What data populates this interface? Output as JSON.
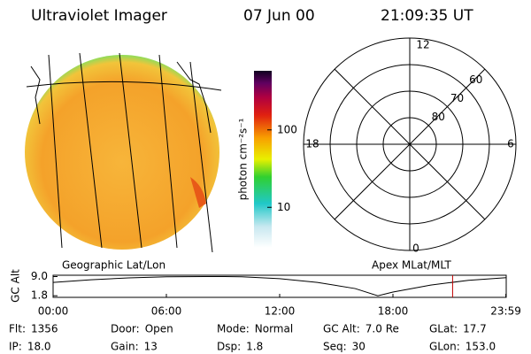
{
  "header": {
    "instrument": "Ultraviolet Imager",
    "date": "07 Jun 00",
    "time": "21:09:35 UT"
  },
  "image": {
    "caption": "Geographic Lat/Lon"
  },
  "colorbar": {
    "label": "photon cm⁻²s⁻¹",
    "log": true,
    "range": [
      3,
      580
    ],
    "ticks": [
      100,
      10
    ]
  },
  "polar": {
    "caption": "Apex MLat/MLT",
    "mlt_labels": [
      "12",
      "18",
      "6",
      "0"
    ],
    "lat_limit": 50,
    "lat_rings": [
      80,
      70,
      60
    ]
  },
  "altitude": {
    "axis_label": "GC Alt",
    "ylim": [
      1.2,
      9.5
    ],
    "yticks": [
      {
        "value": 9.0,
        "label": "9.0"
      },
      {
        "value": 1.8,
        "label": "1.8"
      }
    ],
    "xlim": [
      0,
      24
    ],
    "xticks": [
      {
        "value": 0,
        "label": "00:00"
      },
      {
        "value": 6,
        "label": "06:00"
      },
      {
        "value": 12,
        "label": "12:00"
      },
      {
        "value": 18,
        "label": "18:00"
      },
      {
        "value": 23.98,
        "label": "23:59"
      }
    ],
    "x": [
      0,
      2,
      4,
      6,
      8,
      9,
      10,
      12,
      14,
      16,
      17.2,
      18,
      20,
      22,
      24
    ],
    "y": [
      6.8,
      7.8,
      8.5,
      8.9,
      9.0,
      9.0,
      8.9,
      8.2,
      6.8,
      4.5,
      1.8,
      3.2,
      5.8,
      7.6,
      8.6
    ],
    "marker": 21.16
  },
  "status": {
    "rows": [
      [
        {
          "label": "Flt:",
          "value": "1356"
        },
        {
          "label": "Door:",
          "value": "Open"
        },
        {
          "label": "Mode:",
          "value": "Normal"
        },
        {
          "label": "GC Alt:",
          "value": "7.0 Re"
        },
        {
          "label": "GLat:",
          "value": "17.7"
        }
      ],
      [
        {
          "label": "IP:",
          "value": "18.0"
        },
        {
          "label": "Gain:",
          "value": "13"
        },
        {
          "label": "Dsp:",
          "value": "1.8"
        },
        {
          "label": "Seq:",
          "value": "30"
        },
        {
          "label": "GLon:",
          "value": "153.0"
        }
      ]
    ]
  }
}
